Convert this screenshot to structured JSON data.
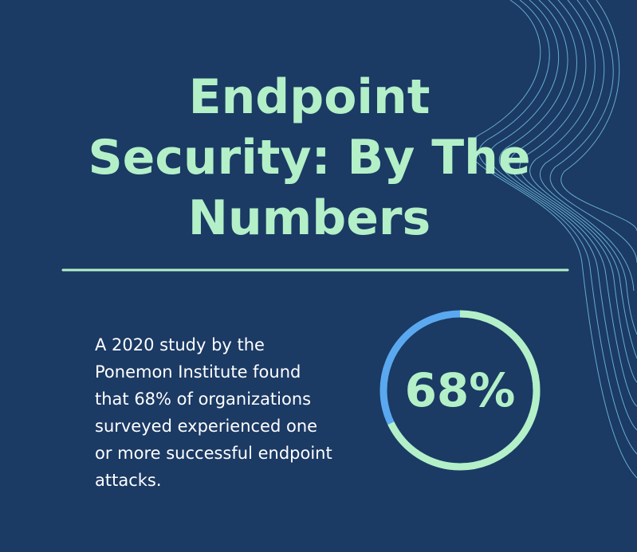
{
  "title_lines": [
    "Endpoint",
    "Security: By The",
    "Numbers"
  ],
  "body_lines": [
    "A 2020 study by the",
    "Ponemon Institute found",
    "that 68% of organizations",
    "surveyed experienced one",
    "or more successful endpoint",
    "attacks."
  ],
  "stat": {
    "value": 68,
    "label": "68%"
  }
}
